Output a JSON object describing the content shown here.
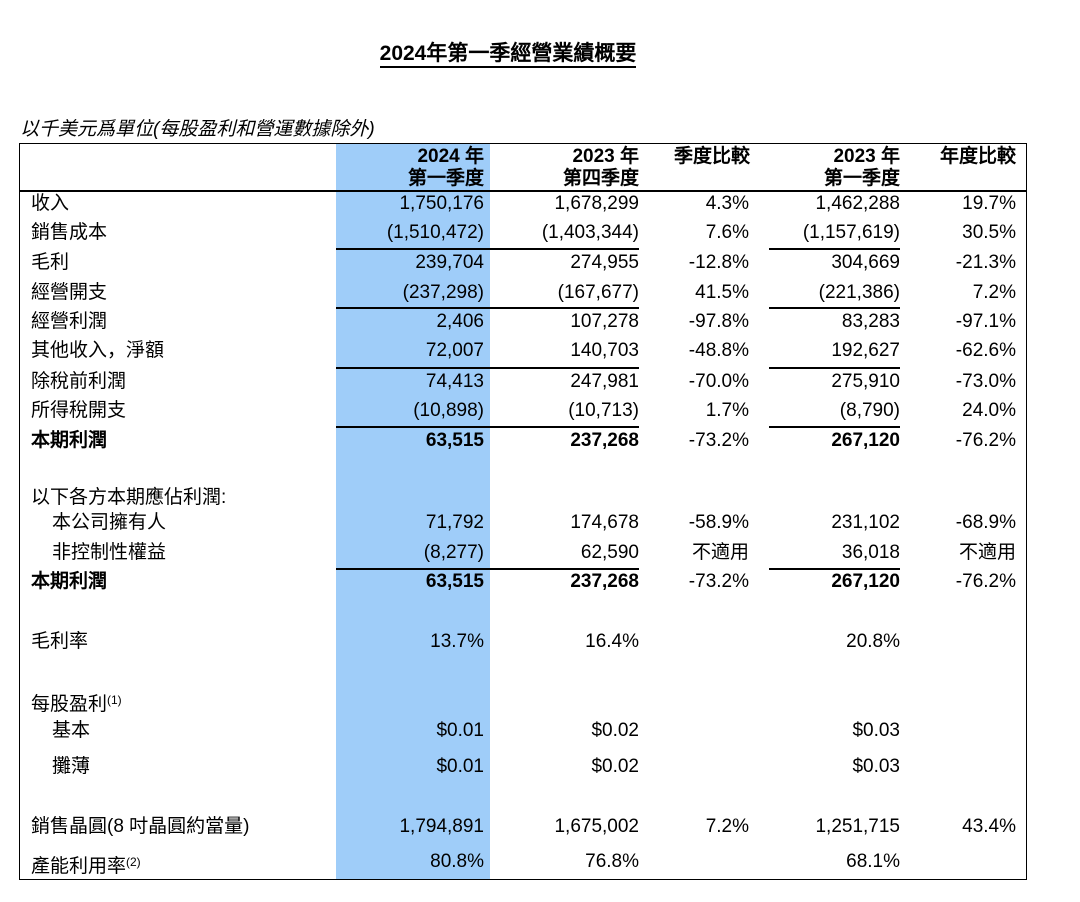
{
  "title": "2024年第一季經營業績概要",
  "unit_note": "以千美元爲單位(每股盈利和營運數據除外)",
  "columns": [
    {
      "line1": "2024 年",
      "line2": "第一季度"
    },
    {
      "line1": "2023 年",
      "line2": "第四季度"
    },
    {
      "line1": "季度比較",
      "line2": ""
    },
    {
      "line1": "2023 年",
      "line2": "第一季度"
    },
    {
      "line1": "年度比較",
      "line2": ""
    }
  ],
  "rows": [
    {
      "label": "收入",
      "v": [
        "1,750,176",
        "1,678,299",
        "4.3%",
        "1,462,288",
        "19.7%"
      ]
    },
    {
      "label": "銷售成本",
      "v": [
        "(1,510,472)",
        "(1,403,344)",
        "7.6%",
        "(1,157,619)",
        "30.5%"
      ]
    },
    {
      "label": "毛利",
      "v": [
        "239,704",
        "274,955",
        "-12.8%",
        "304,669",
        "-21.3%"
      ]
    },
    {
      "label": "經營開支",
      "v": [
        "(237,298)",
        "(167,677)",
        "41.5%",
        "(221,386)",
        "7.2%"
      ]
    },
    {
      "label": "經營利潤",
      "v": [
        "2,406",
        "107,278",
        "-97.8%",
        "83,283",
        "-97.1%"
      ]
    },
    {
      "label": "其他收入，淨額",
      "v": [
        "72,007",
        "140,703",
        "-48.8%",
        "192,627",
        "-62.6%"
      ]
    },
    {
      "label": "除稅前利潤",
      "v": [
        "74,413",
        "247,981",
        "-70.0%",
        "275,910",
        "-73.0%"
      ]
    },
    {
      "label": "所得稅開支",
      "v": [
        "(10,898)",
        "(10,713)",
        "1.7%",
        "(8,790)",
        "24.0%"
      ]
    },
    {
      "label": "本期利潤",
      "v": [
        "63,515",
        "237,268",
        "-73.2%",
        "267,120",
        "-76.2%"
      ]
    },
    {
      "label": "以下各方本期應佔利潤:",
      "v": [
        "",
        "",
        "",
        "",
        ""
      ]
    },
    {
      "label": "本公司擁有人",
      "v": [
        "71,792",
        "174,678",
        "-58.9%",
        "231,102",
        "-68.9%"
      ]
    },
    {
      "label": "非控制性權益",
      "v": [
        "(8,277)",
        "62,590",
        "不適用",
        "36,018",
        "不適用"
      ]
    },
    {
      "label": "本期利潤",
      "v": [
        "63,515",
        "237,268",
        "-73.2%",
        "267,120",
        "-76.2%"
      ]
    },
    {
      "label": "毛利率",
      "v": [
        "13.7%",
        "16.4%",
        "",
        "20.8%",
        ""
      ]
    },
    {
      "label": "每股盈利",
      "sup": "(1)",
      "v": [
        "",
        "",
        "",
        "",
        ""
      ]
    },
    {
      "label": "基本",
      "v": [
        "$0.01",
        "$0.02",
        "",
        "$0.03",
        ""
      ]
    },
    {
      "label": "攤薄",
      "v": [
        "$0.01",
        "$0.02",
        "",
        "$0.03",
        ""
      ]
    },
    {
      "label": "銷售晶圓(8 吋晶圓約當量)",
      "v": [
        "1,794,891",
        "1,675,002",
        "7.2%",
        "1,251,715",
        "43.4%"
      ]
    },
    {
      "label": "產能利用率",
      "sup": "(2)",
      "v": [
        "80.8%",
        "76.8%",
        "",
        "68.1%",
        ""
      ]
    }
  ]
}
